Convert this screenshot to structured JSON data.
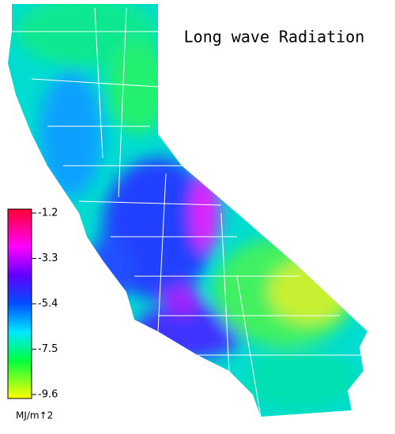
{
  "title": "Long wave Radiation",
  "colorbar": {
    "ticks": [
      -1.2,
      -3.3,
      -5.4,
      -7.5,
      -9.6
    ],
    "unit": "MJ/m↑2"
  }
}
